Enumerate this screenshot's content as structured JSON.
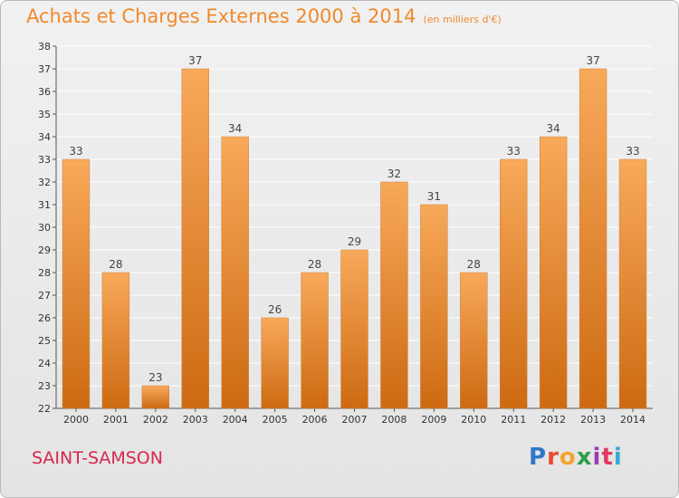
{
  "chart_title": "Achats et Charges Externes 2000 à 2014",
  "chart_unit": "(en milliers d'€)",
  "commune": "SAINT-SAMSON",
  "logo": "Proxiti",
  "colors": {
    "bar_top": "#f8a95a",
    "bar_bottom": "#cd6a12",
    "title": "#f08a2c",
    "commune": "#d6284e",
    "grid": "#ffffff"
  },
  "chart_data": {
    "type": "bar",
    "title": "Achats et Charges Externes 2000 à 2014",
    "subtitle": "(en milliers d'€)",
    "xlabel": "",
    "ylabel": "",
    "categories": [
      "2000",
      "2001",
      "2002",
      "2003",
      "2004",
      "2005",
      "2006",
      "2007",
      "2008",
      "2009",
      "2010",
      "2011",
      "2012",
      "2013",
      "2014"
    ],
    "values": [
      33,
      28,
      23,
      37,
      34,
      26,
      28,
      29,
      32,
      31,
      28,
      33,
      34,
      37,
      33
    ],
    "ylim": [
      22,
      38
    ],
    "yticks": [
      22,
      23,
      24,
      25,
      26,
      27,
      28,
      29,
      30,
      31,
      32,
      33,
      34,
      35,
      36,
      37,
      38
    ],
    "grid": true,
    "data_labels": true,
    "legend": "none"
  }
}
